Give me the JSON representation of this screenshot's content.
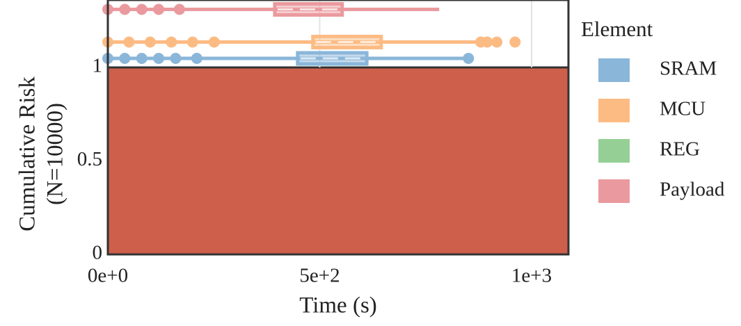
{
  "chart_data": [
    {
      "type": "area",
      "x_label": "Time (s)",
      "y_label": [
        "Cumulative Risk",
        "(N=10000)"
      ],
      "x": [
        0,
        1087
      ],
      "values": [
        1,
        1
      ],
      "color": "#cd5f4b",
      "xlim": [
        0,
        1087
      ],
      "ylim": [
        0,
        1
      ],
      "xticks": [
        {
          "value": 0,
          "label": "0e+0"
        },
        {
          "value": 500,
          "label": "5e+2"
        },
        {
          "value": 1000,
          "label": "1e+3"
        }
      ],
      "yticks": [
        0,
        0.5,
        1
      ]
    },
    {
      "type": "box",
      "legend_title": "Element",
      "legend": "right",
      "grid": true,
      "xlim": [
        0,
        1087
      ],
      "series": [
        {
          "name": "SRAM",
          "color": "#8ab6d9",
          "whisker": [
            0,
            851
          ],
          "box": [
            448,
            611
          ],
          "median": 538,
          "outliers": [
            0,
            40,
            80,
            120,
            160,
            210,
            851
          ]
        },
        {
          "name": "MCU",
          "color": "#fdbb84",
          "whisker": [
            0,
            875
          ],
          "box": [
            484,
            645
          ],
          "median": 571,
          "outliers": [
            0,
            50,
            100,
            150,
            200,
            251,
            880,
            895,
            918,
            961
          ]
        },
        {
          "name": "REG",
          "color": "#95cf95",
          "whisker": null,
          "box": null,
          "median": null,
          "outliers": []
        },
        {
          "name": "Payload",
          "color": "#ea9a9e",
          "whisker": [
            0,
            782
          ],
          "box": [
            394,
            553
          ],
          "median": 493,
          "outliers": [
            0,
            40,
            80,
            120,
            169
          ]
        }
      ]
    }
  ]
}
